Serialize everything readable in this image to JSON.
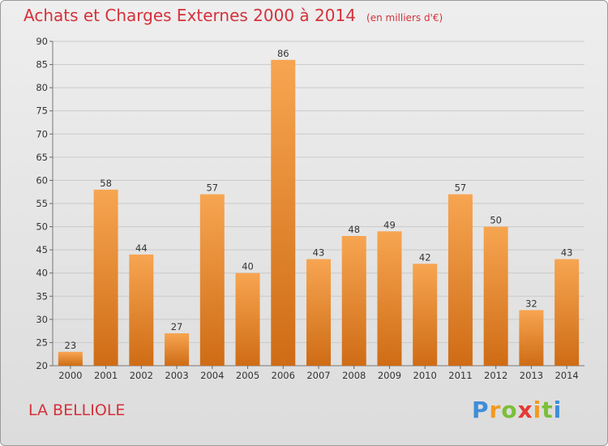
{
  "header": {
    "title": "Achats et Charges Externes 2000 à 2014",
    "subtitle": "(en milliers d'€)"
  },
  "footer": {
    "location": "LA BELLIOLE",
    "brand": {
      "letters": [
        "P",
        "r",
        "o",
        "x",
        "i",
        "t",
        "i"
      ],
      "colors": [
        "#3d8ed9",
        "#f39a1e",
        "#7cbf3a",
        "#e53935",
        "#f39a1e",
        "#7cbf3a",
        "#3d8ed9"
      ]
    }
  },
  "colors": {
    "title": "#d5313a",
    "bar_top": "#f7a551",
    "bar_bottom": "#cf6c15",
    "grid": "#c9c9c9"
  },
  "chart_data": {
    "type": "bar",
    "title": "Achats et Charges Externes 2000 à 2014",
    "subtitle": "(en milliers d'€)",
    "categories": [
      "2000",
      "2001",
      "2002",
      "2003",
      "2004",
      "2005",
      "2006",
      "2007",
      "2008",
      "2009",
      "2010",
      "2011",
      "2012",
      "2013",
      "2014"
    ],
    "values": [
      23,
      58,
      44,
      27,
      57,
      40,
      86,
      43,
      48,
      49,
      42,
      57,
      50,
      32,
      43
    ],
    "ylim": [
      20,
      90
    ],
    "yticks": [
      20,
      25,
      30,
      35,
      40,
      45,
      50,
      55,
      60,
      65,
      70,
      75,
      80,
      85,
      90
    ],
    "grid": true,
    "data_labels": true
  }
}
